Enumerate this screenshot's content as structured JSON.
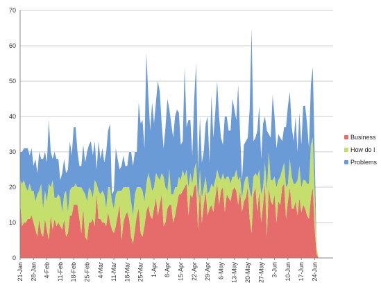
{
  "chart_data": {
    "type": "area",
    "stacked": true,
    "x_tick_labels": [
      "21-Jan",
      "28-Jan",
      "4-Feb",
      "11-Feb",
      "18-Feb",
      "25-Feb",
      "4-Mar",
      "11-Mar",
      "18-Mar",
      "25-Mar",
      "1-Apr",
      "8-Apr",
      "15-Apr",
      "22-Apr",
      "29-Apr",
      "6-May",
      "13-May",
      "20-May",
      "27-May",
      "3-Jun",
      "10-Jun",
      "17-Jun",
      "24-Jun"
    ],
    "y_ticks": [
      0,
      10,
      20,
      30,
      40,
      50,
      60,
      70
    ],
    "ylim": [
      0,
      70
    ],
    "grid": true,
    "legend_position": "right",
    "days": 157,
    "series": [
      {
        "name": "Business",
        "color": "#e66b6b",
        "values": [
          16,
          9,
          10,
          10,
          11,
          11,
          12,
          10,
          8,
          6,
          11,
          7,
          6,
          11,
          8,
          5,
          12,
          8,
          11,
          9,
          10,
          9,
          8,
          11,
          6,
          7,
          12,
          12,
          15,
          15,
          15,
          11,
          7,
          14,
          6,
          5,
          10,
          10,
          11,
          9,
          18,
          11,
          11,
          10,
          10,
          9,
          13,
          10,
          8,
          7,
          9,
          12,
          15,
          5,
          10,
          12,
          13,
          11,
          6,
          4,
          8,
          12,
          14,
          7,
          6,
          9,
          13,
          15,
          12,
          11,
          14,
          17,
          12,
          15,
          18,
          9,
          10,
          14,
          15,
          15,
          10,
          12,
          15,
          18,
          18,
          19,
          20,
          21,
          12,
          18,
          17,
          20,
          21,
          8,
          20,
          10,
          15,
          19,
          12,
          14,
          15,
          13,
          17,
          21,
          15,
          19,
          20,
          13,
          18,
          17,
          16,
          19,
          20,
          19,
          15,
          19,
          13,
          16,
          17,
          20,
          11,
          7,
          18,
          20,
          13,
          19,
          10,
          15,
          21,
          6,
          20,
          16,
          15,
          18,
          10,
          16,
          15,
          20,
          21,
          11,
          16,
          20,
          14,
          14,
          16,
          12,
          17,
          13,
          15,
          14,
          12,
          11,
          17,
          20,
          8,
          1,
          0
        ]
      },
      {
        "name": "How do I",
        "color": "#c4df6b",
        "values": [
          6,
          12,
          12,
          10,
          8,
          10,
          7,
          9,
          8,
          12,
          8,
          14,
          8,
          8,
          8,
          16,
          8,
          14,
          6,
          8,
          8,
          8,
          5,
          7,
          13,
          6,
          7,
          8,
          5,
          6,
          5,
          9,
          13,
          5,
          12,
          11,
          10,
          9,
          6,
          13,
          3,
          8,
          7,
          9,
          8,
          5,
          7,
          10,
          8,
          7,
          9,
          7,
          4,
          14,
          10,
          8,
          7,
          9,
          10,
          8,
          10,
          8,
          6,
          13,
          13,
          7,
          8,
          9,
          10,
          8,
          6,
          7,
          11,
          7,
          6,
          14,
          10,
          5,
          10,
          3,
          8,
          8,
          5,
          5,
          4,
          6,
          3,
          4,
          8,
          6,
          4,
          5,
          6,
          8,
          5,
          7,
          5,
          4,
          6,
          5,
          6,
          7,
          5,
          4,
          8,
          3,
          4,
          9,
          5,
          6,
          5,
          4,
          3,
          6,
          7,
          4,
          4,
          5,
          6,
          3,
          8,
          10,
          5,
          4,
          10,
          6,
          8,
          5,
          6,
          13,
          10,
          6,
          7,
          5,
          10,
          6,
          8,
          5,
          6,
          9,
          5,
          8,
          9,
          7,
          5,
          10,
          9,
          7,
          7,
          8,
          9,
          10,
          15,
          14,
          10,
          2,
          0
        ]
      },
      {
        "name": "Problems",
        "color": "#6b9bd6",
        "values": [
          8,
          9,
          9,
          11,
          12,
          8,
          12,
          7,
          12,
          6,
          11,
          7,
          14,
          11,
          11,
          18,
          10,
          6,
          13,
          11,
          10,
          5,
          11,
          10,
          5,
          12,
          14,
          9,
          17,
          16,
          10,
          6,
          6,
          13,
          9,
          14,
          12,
          14,
          12,
          11,
          4,
          14,
          10,
          12,
          9,
          16,
          16,
          18,
          2,
          5,
          13,
          9,
          6,
          7,
          9,
          6,
          6,
          10,
          14,
          14,
          12,
          10,
          24,
          18,
          20,
          15,
          37,
          22,
          14,
          25,
          18,
          20,
          27,
          25,
          14,
          8,
          17,
          26,
          17,
          20,
          16,
          20,
          22,
          18,
          10,
          8,
          31,
          12,
          19,
          15,
          8,
          20,
          28,
          9,
          15,
          10,
          10,
          15,
          22,
          8,
          25,
          14,
          19,
          25,
          17,
          12,
          8,
          18,
          17,
          13,
          15,
          22,
          19,
          14,
          27,
          12,
          5,
          11,
          10,
          11,
          23,
          48,
          10,
          10,
          13,
          18,
          10,
          18,
          13,
          17,
          5,
          12,
          24,
          17,
          11,
          13,
          11,
          8,
          10,
          17,
          22,
          19,
          14,
          12,
          19,
          8,
          15,
          12,
          21,
          21,
          17,
          10,
          17,
          20,
          11,
          0,
          0
        ]
      }
    ]
  }
}
